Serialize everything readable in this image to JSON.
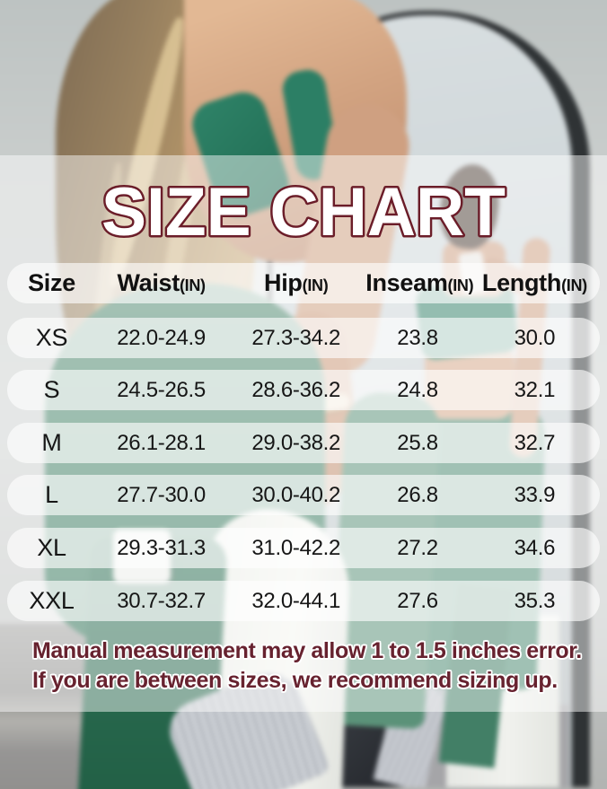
{
  "title": "SIZE CHART",
  "table": {
    "header_unit": "(IN)",
    "headers": {
      "size": "Size",
      "waist": "Waist",
      "hip": "Hip",
      "inseam": "Inseam",
      "length": "Length"
    },
    "rows": [
      {
        "size": "XS",
        "waist": "22.0-24.9",
        "hip": "27.3-34.2",
        "inseam": "23.8",
        "length": "30.0"
      },
      {
        "size": "S",
        "waist": "24.5-26.5",
        "hip": "28.6-36.2",
        "inseam": "24.8",
        "length": "32.1"
      },
      {
        "size": "M",
        "waist": "26.1-28.1",
        "hip": "29.0-38.2",
        "inseam": "25.8",
        "length": "32.7"
      },
      {
        "size": "L",
        "waist": "27.7-30.0",
        "hip": "30.0-40.2",
        "inseam": "26.8",
        "length": "33.9"
      },
      {
        "size": "XL",
        "waist": "29.3-31.3",
        "hip": "31.0-42.2",
        "inseam": "27.2",
        "length": "34.6"
      },
      {
        "size": "XXL",
        "waist": "30.7-32.7",
        "hip": "32.0-44.1",
        "inseam": "27.6",
        "length": "35.3"
      }
    ]
  },
  "note": {
    "line1": "Manual measurement may allow 1 to 1.5 inches error.",
    "line2": "If you are between sizes, we recommend sizing up."
  },
  "colors": {
    "title_fill": "#ffffff",
    "title_outline": "#6b1d29",
    "note_text": "#67222f",
    "activewear_green": "#2f8169",
    "pill_background": "rgba(255,255,255,0.62)"
  }
}
